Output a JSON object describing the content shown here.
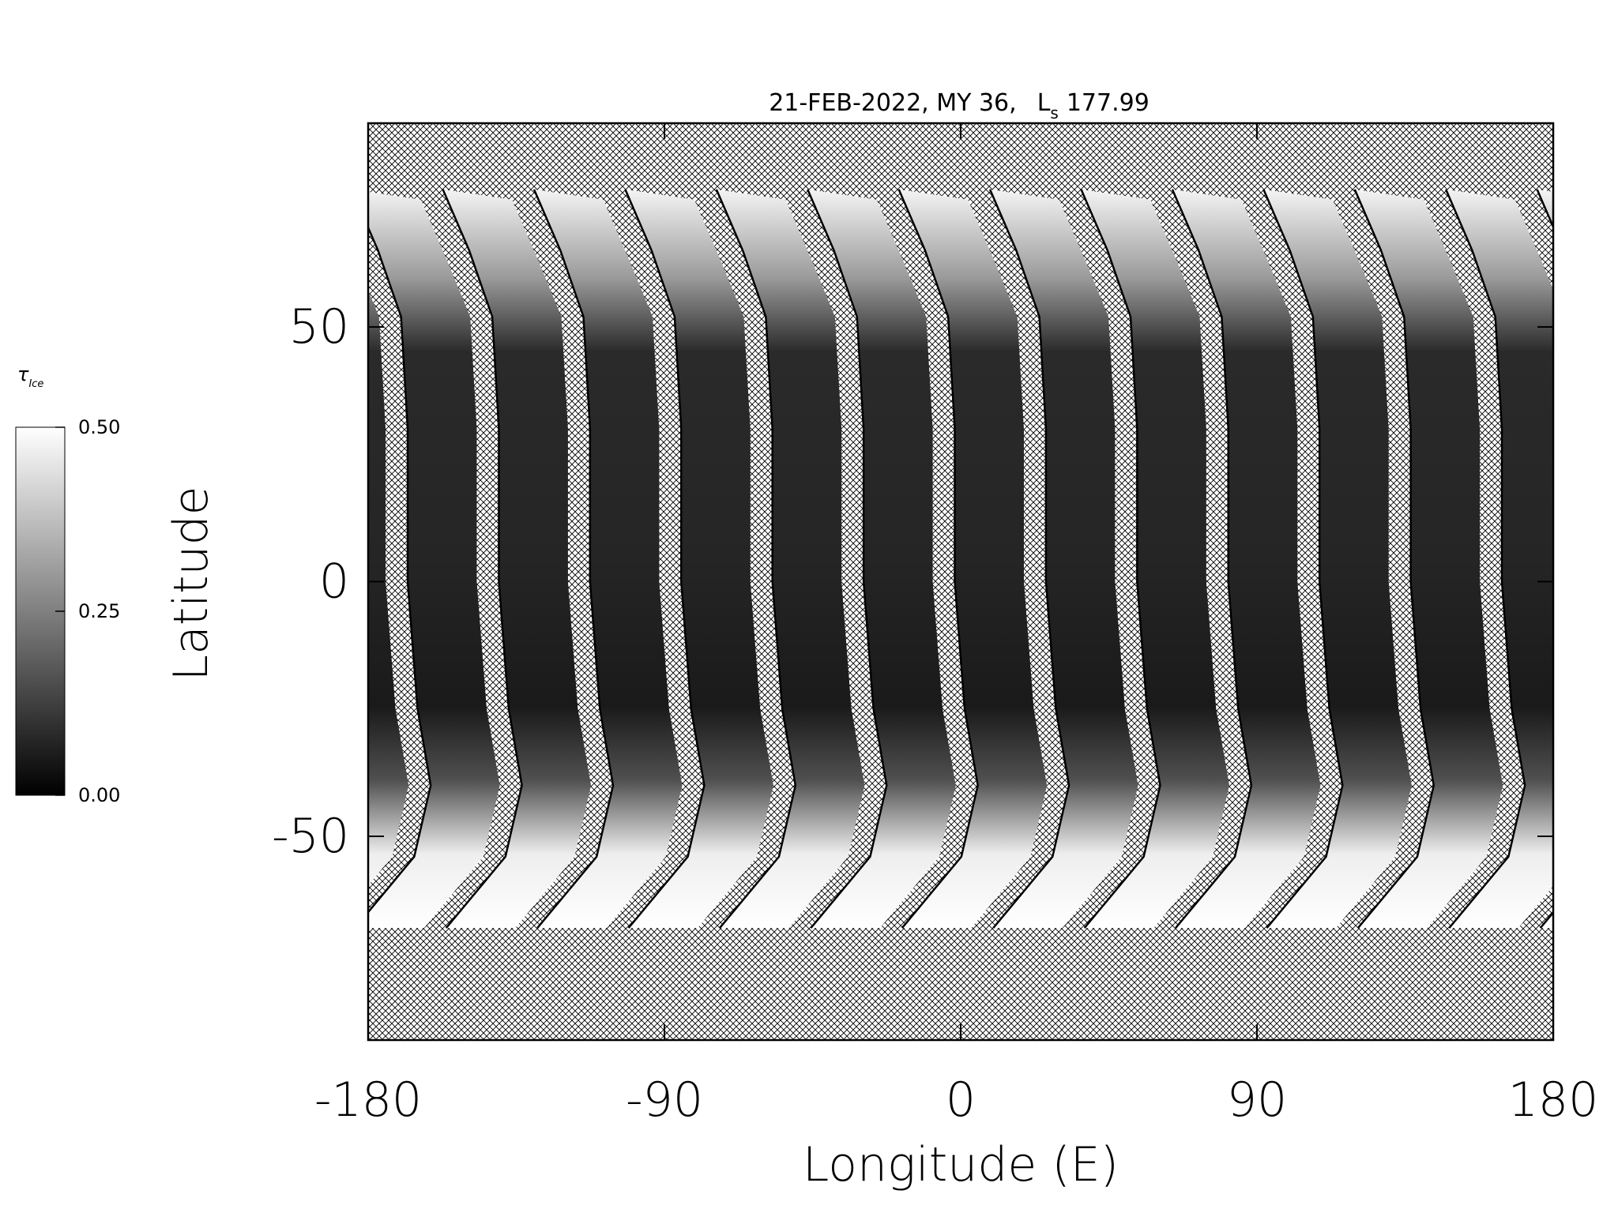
{
  "chart_data": {
    "type": "map",
    "title": "21-FEB-2022, MY 36,",
    "ls_label": "L",
    "ls_subscript": "s",
    "ls": 177.99,
    "x_label": "Longitude (E)",
    "y_label": "Latitude",
    "xlim": [
      -180,
      180
    ],
    "xticks": [
      -180,
      -90,
      0,
      90,
      180
    ],
    "ylim": [
      -90,
      90
    ],
    "yticks": [
      -50,
      0,
      50
    ],
    "colorbar": {
      "label": "τ",
      "label_subscript": "Ice",
      "lim": [
        0,
        0.5
      ],
      "ticks": [
        {
          "value": 0,
          "label": "0.00"
        },
        {
          "value": 0.25,
          "label": "0.25"
        },
        {
          "value": 0.5,
          "label": "0.50"
        }
      ],
      "colors": [
        "#000000",
        "#ffffff"
      ]
    }
  }
}
